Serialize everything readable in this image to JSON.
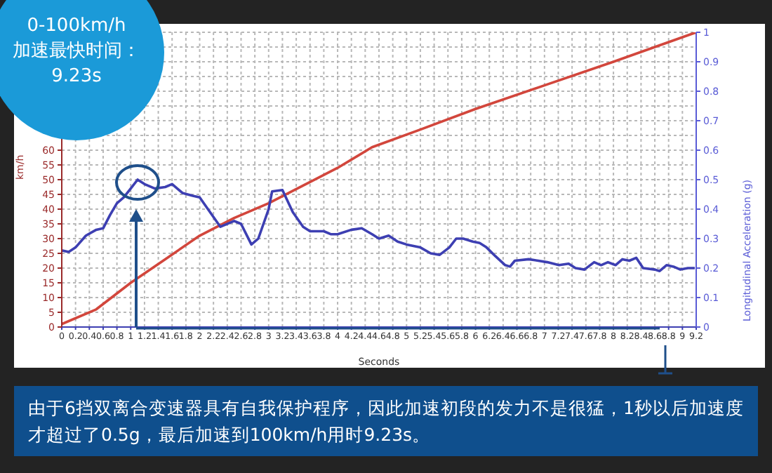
{
  "chart_data": {
    "type": "line",
    "xlabel": "Seconds",
    "ylabel": "km/h",
    "y2label": "Longitudinal Acceleration (g)",
    "annotations": [
      "0-100km/h\n加速最快时间：\n9.23s",
      "由于6挡双离合变速器具有自我保护程序，因此加速初段的发力不是很猛，1秒以后加速度才超过了0.5g，最后加速到100km/h用时9.23s。"
    ],
    "series": [
      {
        "color": "#d2463c",
        "x": [
          0,
          0.5,
          1,
          1.5,
          2,
          2.5,
          3,
          3.5,
          4,
          4.5,
          5.2,
          6,
          7,
          8,
          8.6,
          9.2
        ],
        "values": [
          1,
          6,
          15,
          23,
          31,
          37,
          42,
          48,
          54,
          61,
          67,
          74,
          82,
          90,
          95,
          100
        ]
      },
      {
        "axis": "y2",
        "color": "#3d3fb2",
        "x": [
          0,
          0.1,
          0.2,
          0.35,
          0.5,
          0.6,
          0.7,
          0.8,
          0.9,
          1.0,
          1.1,
          1.2,
          1.35,
          1.5,
          1.6,
          1.75,
          1.9,
          2.0,
          2.15,
          2.3,
          2.5,
          2.6,
          2.75,
          2.85,
          3.0,
          3.05,
          3.2,
          3.35,
          3.5,
          3.6,
          3.8,
          3.9,
          4.0,
          4.2,
          4.35,
          4.5,
          4.6,
          4.74,
          4.87,
          5.0,
          5.2,
          5.35,
          5.48,
          5.62,
          5.72,
          5.82,
          5.96,
          6.06,
          6.16,
          6.29,
          6.43,
          6.5,
          6.57,
          6.77,
          6.91,
          7.04,
          7.21,
          7.35,
          7.45,
          7.58,
          7.72,
          7.82,
          7.92,
          8.03,
          8.13,
          8.23,
          8.33,
          8.43,
          8.6,
          8.67,
          8.77,
          8.87,
          8.97,
          9.08,
          9.18
        ],
        "values": [
          0.26,
          0.255,
          0.27,
          0.31,
          0.33,
          0.335,
          0.38,
          0.42,
          0.44,
          0.47,
          0.5,
          0.485,
          0.47,
          0.475,
          0.485,
          0.455,
          0.445,
          0.44,
          0.39,
          0.34,
          0.36,
          0.35,
          0.28,
          0.3,
          0.4,
          0.46,
          0.465,
          0.39,
          0.34,
          0.325,
          0.325,
          0.315,
          0.315,
          0.33,
          0.335,
          0.315,
          0.3,
          0.31,
          0.29,
          0.28,
          0.27,
          0.25,
          0.245,
          0.27,
          0.3,
          0.3,
          0.29,
          0.285,
          0.27,
          0.24,
          0.21,
          0.205,
          0.225,
          0.23,
          0.225,
          0.22,
          0.21,
          0.215,
          0.2,
          0.195,
          0.22,
          0.21,
          0.22,
          0.21,
          0.23,
          0.225,
          0.235,
          0.2,
          0.195,
          0.19,
          0.21,
          0.205,
          0.195,
          0.2,
          0.2
        ]
      }
    ],
    "xlim": [
      0,
      9.2
    ],
    "xticks": [
      0,
      0.2,
      0.4,
      0.6,
      0.8,
      1,
      1.2,
      1.4,
      1.6,
      1.8,
      2,
      2.2,
      2.4,
      2.6,
      2.8,
      3,
      3.2,
      3.4,
      3.6,
      3.8,
      4,
      4.2,
      4.4,
      4.6,
      4.8,
      5,
      5.2,
      5.4,
      5.6,
      5.8,
      6,
      6.2,
      6.4,
      6.6,
      6.8,
      7,
      7.2,
      7.4,
      7.6,
      7.8,
      8,
      8.2,
      8.4,
      8.6,
      8.8,
      9,
      9.2
    ],
    "ylim": [
      0,
      100
    ],
    "yticks": [
      0,
      5,
      10,
      15,
      20,
      25,
      30,
      35,
      40,
      45,
      50,
      55,
      60,
      {
        "value": 65,
        "label": null
      },
      {
        "value": 70,
        "label": null
      },
      {
        "value": 75,
        "label": null
      },
      {
        "value": 80,
        "label": null
      },
      {
        "value": 85,
        "label": null
      },
      {
        "value": 90,
        "label": null
      },
      {
        "value": 95,
        "label": null
      },
      {
        "value": 100,
        "label": null
      }
    ],
    "y2lim": [
      0,
      1
    ],
    "y2ticks": [
      0,
      0.1,
      0.2,
      0.3,
      0.4,
      0.5,
      0.6,
      0.7,
      0.8,
      0.9,
      1
    ],
    "grid": true
  }
}
